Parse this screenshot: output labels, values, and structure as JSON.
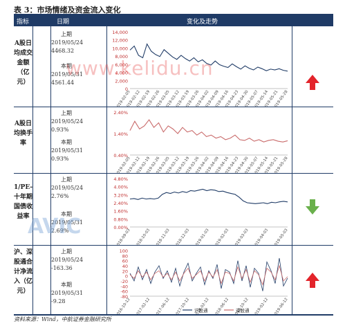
{
  "title": "表 3：市场情绪及资金流入变化",
  "header": {
    "col1": "指标",
    "col2": "日期",
    "col3": "变化及走势"
  },
  "watermark": "www.kelidu.cn",
  "logo": "AVIC",
  "footer": "资料来源：Wind，中航证券金融研究所",
  "colors": {
    "header_bg": "#1f3b66",
    "line_dark": "#1f3b66",
    "line_red": "#c96a6a",
    "arrow_up": "#e3242b",
    "arrow_down": "#6ab04c"
  },
  "rows": [
    {
      "indicator": "A股日均成交金额（亿元）",
      "prev_label": "上期",
      "prev_date": "2019/05/24",
      "prev_value": "4468.32",
      "cur_label": "本期",
      "cur_date": "2019/05/31",
      "cur_value": "4561.44",
      "arrow": "up"
    },
    {
      "indicator": "A股日均换手率",
      "prev_label": "上期",
      "prev_date": "2019/05/24",
      "prev_value": "0.93%",
      "cur_label": "本期",
      "cur_date": "2019/05/31",
      "cur_value": "0.93%",
      "arrow": "up"
    },
    {
      "indicator": "1/PE-十年期国债收益率",
      "prev_label": "上期",
      "prev_date": "2019/05/24",
      "prev_value": "2.76%",
      "cur_label": "本期",
      "cur_date": "2019/05/31",
      "cur_value": "2.69%",
      "arrow": "down"
    },
    {
      "indicator": "沪、深股通合计净流入（亿元）",
      "prev_label": "上期",
      "prev_date": "2019/05/24",
      "prev_value": "-163.36",
      "cur_label": "本期",
      "cur_date": "2019/05/31",
      "cur_value": "-9.28",
      "arrow": "up"
    }
  ],
  "chart_data": [
    {
      "type": "line",
      "ylim": [
        0,
        14000
      ],
      "yticks": [
        "0",
        "2,000",
        "4,000",
        "6,000",
        "8,000",
        "10,000",
        "12,000",
        "14,000"
      ],
      "xticks": [
        "2019-02-05",
        "2019-02-12",
        "2019-02-19",
        "2019-02-26",
        "2019-03-05",
        "2019-03-12",
        "2019-03-19",
        "2019-03-26",
        "2019-04-02",
        "2019-04-09",
        "2019-04-16",
        "2019-04-23",
        "2019-04-30",
        "2019-05-07",
        "2019-05-14",
        "2019-05-21",
        "2019-05-28"
      ],
      "series": [
        {
          "values": [
            9500,
            10500,
            8200,
            7600,
            11000,
            9200,
            8400,
            7900,
            9600,
            8700,
            7800,
            7200,
            8200,
            7400,
            6800,
            7600,
            6600,
            7100,
            6200,
            5800,
            6800,
            5900,
            5500,
            5200,
            6100,
            5400,
            4800,
            5600,
            5000,
            4600,
            5300,
            4900,
            4400,
            4800,
            4600,
            4900,
            4500,
            4300
          ]
        }
      ]
    },
    {
      "type": "line",
      "ylim": [
        0,
        2.8
      ],
      "yticks": [
        "0.40%",
        "1.40%",
        "2.40%"
      ],
      "xticks": [
        "2019-02-05",
        "2019-02-12",
        "2019-02-19",
        "2019-02-26",
        "2019-03-05",
        "2019-03-12",
        "2019-03-19",
        "2019-03-26",
        "2019-04-02",
        "2019-04-09",
        "2019-04-16",
        "2019-04-23",
        "2019-04-30",
        "2019-05-07",
        "2019-05-14",
        "2019-05-21",
        "2019-05-28"
      ],
      "series": [
        {
          "values": [
            1.6,
            2.2,
            1.7,
            1.9,
            2.3,
            1.8,
            2.1,
            1.5,
            1.9,
            1.7,
            1.4,
            1.8,
            1.5,
            1.6,
            1.3,
            1.5,
            1.2,
            1.3,
            1.1,
            1.2,
            1.0,
            1.1,
            1.3,
            1.0,
            0.95,
            1.1,
            0.9,
            1.0,
            0.85,
            0.95,
            1.0,
            0.9,
            0.85,
            0.93
          ]
        }
      ]
    },
    {
      "type": "line",
      "ylim": [
        0,
        5.2
      ],
      "yticks": [
        "0.00%",
        "0.80%",
        "1.60%",
        "2.40%",
        "3.20%",
        "4.00%",
        "4.80%"
      ],
      "xticks": [
        "2018-09-03",
        "2018-10-03",
        "2018-11-03",
        "2018-12-03",
        "2019-01-03",
        "2019-02-03",
        "2019-03-03",
        "2019-04-03",
        "2019-05-03"
      ],
      "series": [
        {
          "values": [
            3.0,
            3.05,
            2.95,
            3.1,
            3.0,
            3.05,
            3.0,
            3.1,
            3.5,
            3.7,
            3.6,
            3.75,
            3.65,
            3.8,
            3.7,
            3.9,
            3.85,
            3.95,
            4.05,
            3.9,
            4.0,
            3.95,
            3.8,
            3.85,
            3.7,
            3.6,
            3.5,
            3.2,
            2.8,
            2.6,
            2.55,
            2.5,
            2.55,
            2.6,
            2.5,
            2.65,
            2.6,
            2.7,
            2.75,
            2.69
          ]
        }
      ]
    },
    {
      "type": "line",
      "ylim": [
        -80,
        100
      ],
      "yticks": [
        "-80",
        "-60",
        "-40",
        "-20",
        "0",
        "20",
        "40",
        "60",
        "80",
        "100"
      ],
      "xticks": [
        "2016-10-12",
        "2017-02-12",
        "2017-06-12",
        "2017-10-12",
        "2018-02-12",
        "2018-06-12",
        "2018-10-12",
        "2019-02-12",
        "2019-06-12"
      ],
      "legend": [
        "沪股通",
        "深股通"
      ],
      "series": [
        {
          "name": "沪股通",
          "values": [
            10,
            -20,
            35,
            -15,
            25,
            -30,
            15,
            40,
            -10,
            20,
            -25,
            30,
            -40,
            15,
            50,
            -20,
            10,
            35,
            -35,
            20,
            -10,
            45,
            -50,
            25,
            15,
            -30,
            60,
            -20,
            40,
            -45,
            30,
            10,
            -60,
            55,
            20,
            -30,
            70,
            -40,
            -9
          ]
        },
        {
          "name": "深股通",
          "values": [
            5,
            -10,
            20,
            -5,
            15,
            -15,
            10,
            20,
            -5,
            10,
            -15,
            15,
            -20,
            10,
            30,
            -10,
            5,
            20,
            -20,
            15,
            -5,
            25,
            -30,
            15,
            10,
            -20,
            35,
            -10,
            25,
            -25,
            20,
            5,
            -35,
            30,
            15,
            -15,
            40,
            -20,
            -3
          ]
        }
      ]
    }
  ]
}
